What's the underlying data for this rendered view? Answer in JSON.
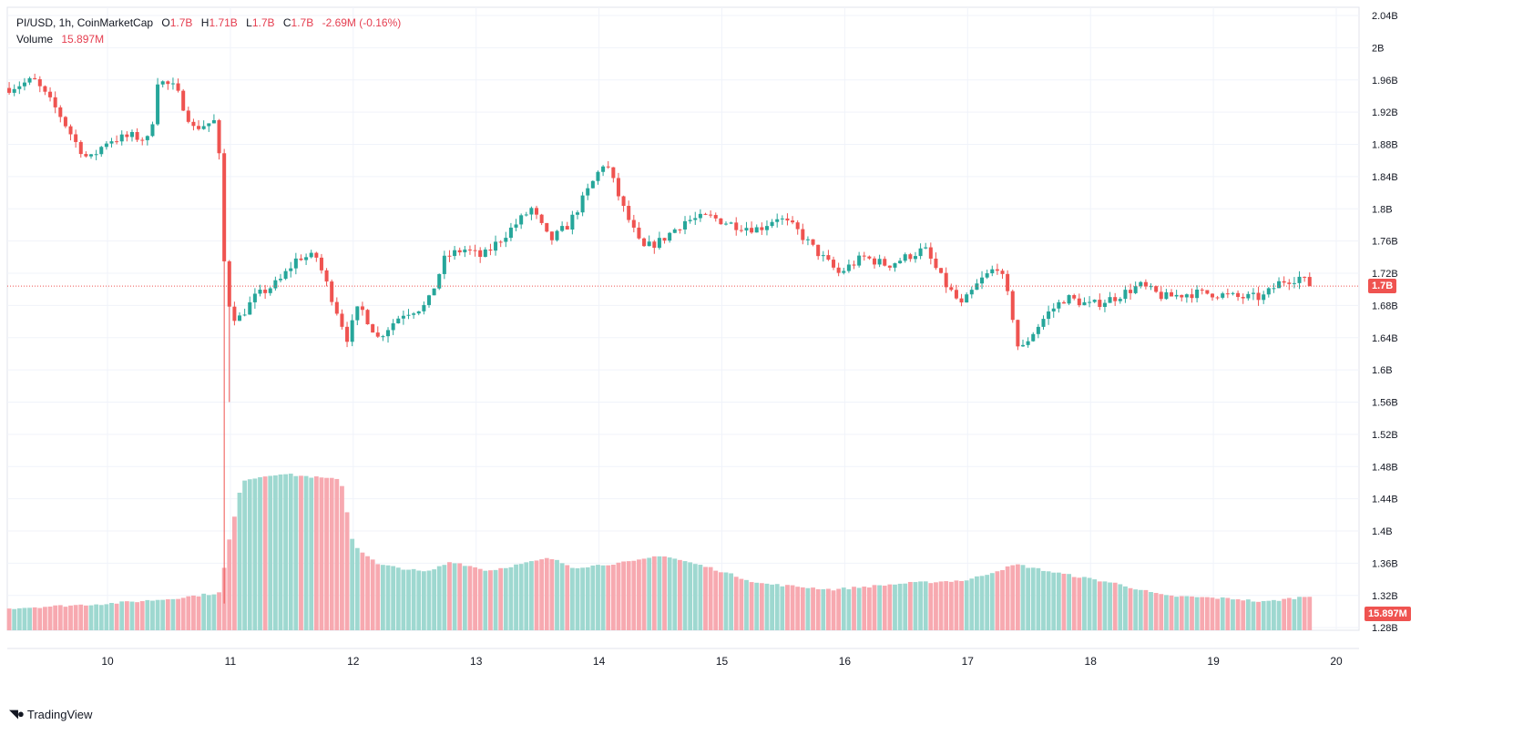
{
  "legend": {
    "symbol": "PI/USD, 1h, CoinMarketCap",
    "o_label": "O",
    "o_value": "1.7B",
    "h_label": "H",
    "h_value": "1.71B",
    "l_label": "L",
    "l_value": "1.7B",
    "c_label": "C",
    "c_value": "1.7B",
    "change": "-2.69M (-0.16%)",
    "volume_label": "Volume",
    "volume_value": "15.897M"
  },
  "price_badge": "1.7B",
  "volume_badge": "15.897M",
  "brand": "TradingView",
  "brand_logo": "tradingview-logo-icon",
  "colors": {
    "up": "#26a69a",
    "down": "#ef5350",
    "vol_up": "#9ed8d0",
    "vol_down": "#f7a9b0",
    "grid": "#f0f3fa",
    "text": "#131722",
    "lastline": "#ef5350"
  },
  "chart_data": {
    "type": "candlestick",
    "interval": "1h",
    "x_ticks": [
      "10",
      "11",
      "12",
      "13",
      "14",
      "15",
      "16",
      "17",
      "18",
      "19",
      "20"
    ],
    "y_ticks": [
      "2.04B",
      "2B",
      "1.96B",
      "1.92B",
      "1.88B",
      "1.84B",
      "1.8B",
      "1.76B",
      "1.72B",
      "1.68B",
      "1.64B",
      "1.6B",
      "1.56B",
      "1.52B",
      "1.48B",
      "1.44B",
      "1.4B",
      "1.36B",
      "1.32B",
      "1.28B"
    ],
    "y_tick_values": [
      2.04,
      2.0,
      1.96,
      1.92,
      1.88,
      1.84,
      1.8,
      1.76,
      1.72,
      1.68,
      1.64,
      1.6,
      1.56,
      1.52,
      1.48,
      1.44,
      1.4,
      1.36,
      1.32,
      1.28
    ],
    "ylim": [
      1.27,
      2.04
    ],
    "last_price": 1.704,
    "start_day": 9.2,
    "hours_per_day": 24,
    "close_series": [
      {
        "day": 9.2,
        "value": 1.95
      },
      {
        "day": 9.4,
        "value": 1.96
      },
      {
        "day": 9.6,
        "value": 1.92
      },
      {
        "day": 9.75,
        "value": 1.88
      },
      {
        "day": 9.85,
        "value": 1.86
      },
      {
        "day": 10.0,
        "value": 1.885
      },
      {
        "day": 10.2,
        "value": 1.89
      },
      {
        "day": 10.35,
        "value": 1.885
      },
      {
        "day": 10.4,
        "value": 1.96
      },
      {
        "day": 10.55,
        "value": 1.95
      },
      {
        "day": 10.7,
        "value": 1.9
      },
      {
        "day": 10.9,
        "value": 1.91
      },
      {
        "day": 10.92,
        "value": 1.8
      },
      {
        "day": 10.97,
        "value": 1.69
      },
      {
        "day": 11.05,
        "value": 1.66
      },
      {
        "day": 11.2,
        "value": 1.69
      },
      {
        "day": 11.4,
        "value": 1.71
      },
      {
        "day": 11.55,
        "value": 1.74
      },
      {
        "day": 11.7,
        "value": 1.74
      },
      {
        "day": 11.85,
        "value": 1.68
      },
      {
        "day": 11.95,
        "value": 1.64
      },
      {
        "day": 12.05,
        "value": 1.68
      },
      {
        "day": 12.2,
        "value": 1.64
      },
      {
        "day": 12.4,
        "value": 1.67
      },
      {
        "day": 12.6,
        "value": 1.68
      },
      {
        "day": 12.75,
        "value": 1.74
      },
      {
        "day": 12.9,
        "value": 1.75
      },
      {
        "day": 13.05,
        "value": 1.74
      },
      {
        "day": 13.25,
        "value": 1.77
      },
      {
        "day": 13.45,
        "value": 1.8
      },
      {
        "day": 13.6,
        "value": 1.76
      },
      {
        "day": 13.75,
        "value": 1.78
      },
      {
        "day": 13.9,
        "value": 1.82
      },
      {
        "day": 14.05,
        "value": 1.86
      },
      {
        "day": 14.2,
        "value": 1.8
      },
      {
        "day": 14.35,
        "value": 1.75
      },
      {
        "day": 14.5,
        "value": 1.76
      },
      {
        "day": 14.7,
        "value": 1.785
      },
      {
        "day": 14.9,
        "value": 1.79
      },
      {
        "day": 15.1,
        "value": 1.78
      },
      {
        "day": 15.3,
        "value": 1.775
      },
      {
        "day": 15.45,
        "value": 1.79
      },
      {
        "day": 15.6,
        "value": 1.775
      },
      {
        "day": 15.75,
        "value": 1.75
      },
      {
        "day": 15.95,
        "value": 1.72
      },
      {
        "day": 16.15,
        "value": 1.74
      },
      {
        "day": 16.35,
        "value": 1.73
      },
      {
        "day": 16.5,
        "value": 1.74
      },
      {
        "day": 16.65,
        "value": 1.75
      },
      {
        "day": 16.8,
        "value": 1.71
      },
      {
        "day": 16.95,
        "value": 1.68
      },
      {
        "day": 17.1,
        "value": 1.71
      },
      {
        "day": 17.25,
        "value": 1.73
      },
      {
        "day": 17.35,
        "value": 1.68
      },
      {
        "day": 17.42,
        "value": 1.62
      },
      {
        "day": 17.5,
        "value": 1.64
      },
      {
        "day": 17.65,
        "value": 1.67
      },
      {
        "day": 17.8,
        "value": 1.69
      },
      {
        "day": 18.0,
        "value": 1.68
      },
      {
        "day": 18.2,
        "value": 1.69
      },
      {
        "day": 18.4,
        "value": 1.705
      },
      {
        "day": 18.6,
        "value": 1.69
      },
      {
        "day": 18.8,
        "value": 1.695
      },
      {
        "day": 19.0,
        "value": 1.695
      },
      {
        "day": 19.2,
        "value": 1.69
      },
      {
        "day": 19.4,
        "value": 1.69
      },
      {
        "day": 19.55,
        "value": 1.71
      },
      {
        "day": 19.7,
        "value": 1.715
      },
      {
        "day": 19.8,
        "value": 1.704
      }
    ],
    "volume_series": [
      {
        "day": 9.2,
        "value": 0.14
      },
      {
        "day": 10.0,
        "value": 0.17
      },
      {
        "day": 10.5,
        "value": 0.2
      },
      {
        "day": 10.92,
        "value": 0.24
      },
      {
        "day": 10.97,
        "value": 0.5
      },
      {
        "day": 11.1,
        "value": 0.96
      },
      {
        "day": 11.4,
        "value": 1.0
      },
      {
        "day": 11.9,
        "value": 0.96
      },
      {
        "day": 12.0,
        "value": 0.55
      },
      {
        "day": 12.2,
        "value": 0.42
      },
      {
        "day": 12.6,
        "value": 0.37
      },
      {
        "day": 12.8,
        "value": 0.44
      },
      {
        "day": 13.1,
        "value": 0.38
      },
      {
        "day": 13.6,
        "value": 0.46
      },
      {
        "day": 13.8,
        "value": 0.4
      },
      {
        "day": 14.3,
        "value": 0.44
      },
      {
        "day": 14.5,
        "value": 0.48
      },
      {
        "day": 14.9,
        "value": 0.4
      },
      {
        "day": 15.3,
        "value": 0.3
      },
      {
        "day": 15.9,
        "value": 0.26
      },
      {
        "day": 16.5,
        "value": 0.3
      },
      {
        "day": 17.0,
        "value": 0.32
      },
      {
        "day": 17.4,
        "value": 0.42
      },
      {
        "day": 17.7,
        "value": 0.37
      },
      {
        "day": 18.2,
        "value": 0.3
      },
      {
        "day": 18.6,
        "value": 0.22
      },
      {
        "day": 19.2,
        "value": 0.2
      },
      {
        "day": 19.4,
        "value": 0.18
      },
      {
        "day": 19.8,
        "value": 0.22
      }
    ]
  }
}
